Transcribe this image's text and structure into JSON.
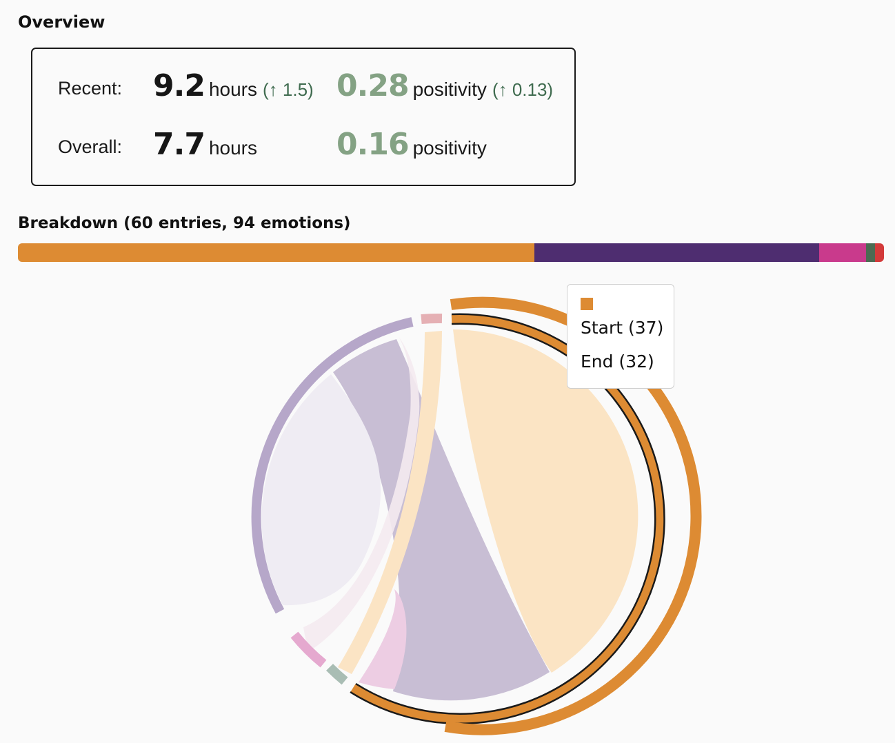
{
  "overview": {
    "title": "Overview",
    "recent": {
      "label": "Recent:",
      "hours": "9.2",
      "hours_unit": "hours",
      "hours_delta": "(↑ 1.5)",
      "positivity": "0.28",
      "positivity_unit": "positivity",
      "positivity_delta": "(↑ 0.13)"
    },
    "overall": {
      "label": "Overall:",
      "hours": "7.7",
      "hours_unit": "hours",
      "positivity": "0.16",
      "positivity_unit": "positivity"
    }
  },
  "breakdown": {
    "title": "Breakdown (60 entries, 94 emotions)",
    "bar_segments": [
      {
        "value": 0.596,
        "color": "#dd8b33"
      },
      {
        "value": 0.329,
        "color": "#4e2d70"
      },
      {
        "value": 0.054,
        "color": "#c93a8c"
      },
      {
        "value": 0.011,
        "color": "#4b6b52"
      },
      {
        "value": 0.01,
        "color": "#d33a3a"
      }
    ]
  },
  "chart_data": {
    "type": "chord",
    "nodes": [
      {
        "color": "#dd8b33",
        "start": 37,
        "end": 32
      },
      {
        "color": "#b6a7c9"
      },
      {
        "color": "#e5b0b4"
      },
      {
        "color": "#e5a9cf"
      },
      {
        "color": "#a9bdb4"
      }
    ],
    "tooltip": {
      "swatch_color": "#dd8b33",
      "start_text": "Start (37)",
      "end_text": "End (32)"
    }
  }
}
